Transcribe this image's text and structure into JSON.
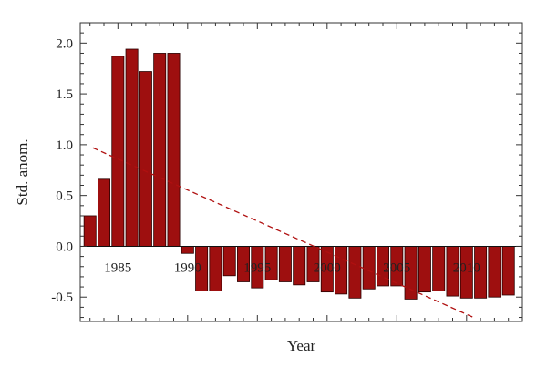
{
  "chart_data": {
    "type": "bar",
    "title": "",
    "xlabel": "Year",
    "ylabel": "Std. anom.",
    "x": [
      1983,
      1984,
      1985,
      1986,
      1987,
      1988,
      1989,
      1990,
      1991,
      1992,
      1993,
      1994,
      1995,
      1996,
      1997,
      1998,
      1999,
      2000,
      2001,
      2002,
      2003,
      2004,
      2005,
      2006,
      2007,
      2008,
      2009,
      2010,
      2011,
      2012,
      2013
    ],
    "values": [
      0.3,
      0.66,
      1.87,
      1.94,
      1.72,
      1.9,
      1.9,
      -0.07,
      -0.44,
      -0.44,
      -0.29,
      -0.35,
      -0.41,
      -0.33,
      -0.35,
      -0.38,
      -0.35,
      -0.45,
      -0.47,
      -0.51,
      -0.42,
      -0.39,
      -0.39,
      -0.52,
      -0.45,
      -0.44,
      -0.49,
      -0.51,
      -0.51,
      -0.5,
      -0.48
    ],
    "xlim": [
      1982.3,
      2014.0
    ],
    "ylim": [
      -0.74,
      2.2
    ],
    "xticks": [
      1985,
      1990,
      1995,
      2000,
      2005,
      2010
    ],
    "yticks": [
      -0.5,
      0.0,
      0.5,
      1.0,
      1.5,
      2.0
    ],
    "ytick_labels": [
      "-0.5",
      "0.0",
      "0.5",
      "1.0",
      "1.5",
      "2.0"
    ],
    "trend": {
      "x": [
        1983.2,
        2010.5
      ],
      "y": [
        0.97,
        -0.7
      ]
    },
    "grid": false,
    "colors": {
      "bar_fill": "#9e0f0f",
      "bar_stroke": "#2a0000",
      "trend": "#b01010",
      "axis": "#333333"
    }
  }
}
